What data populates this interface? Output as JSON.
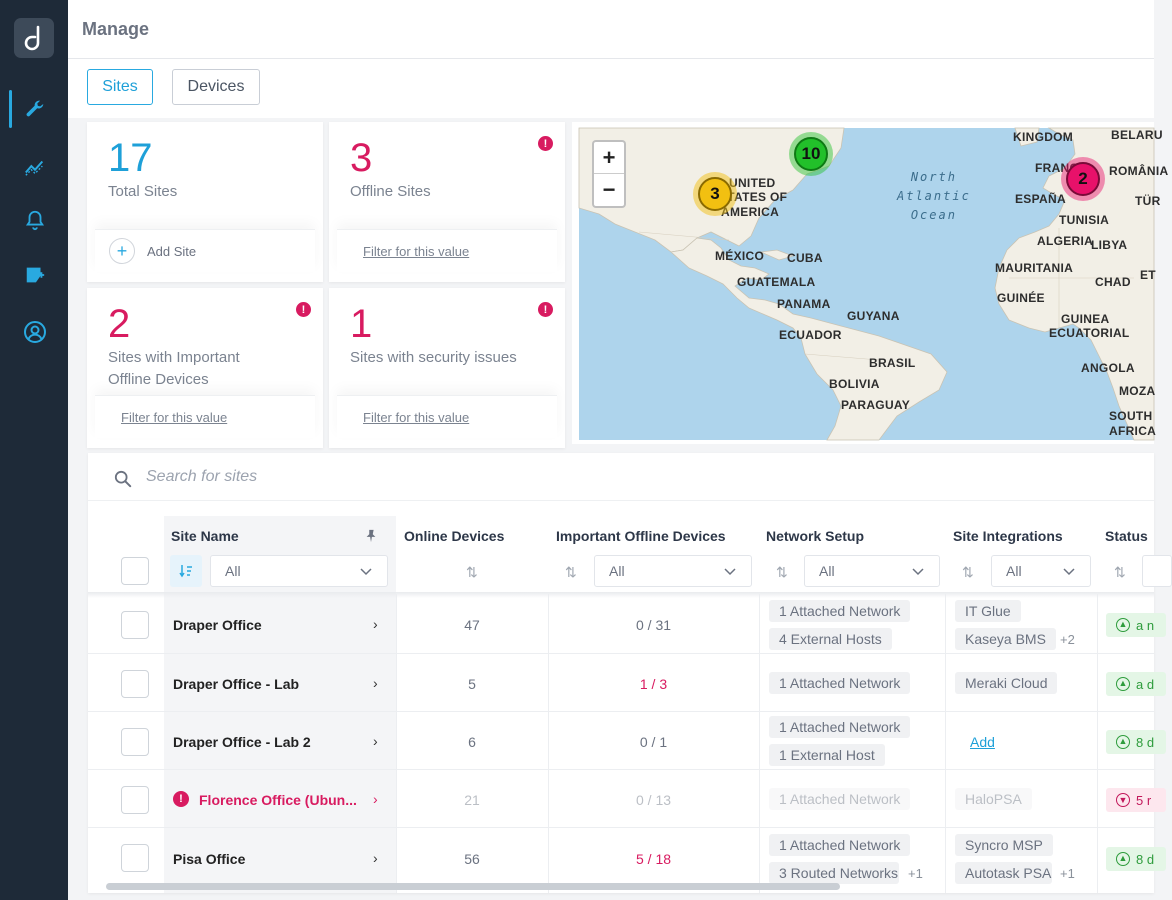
{
  "app": {
    "title": "Manage"
  },
  "tabs": [
    {
      "label": "Sites",
      "active": true
    },
    {
      "label": "Devices",
      "active": false
    }
  ],
  "sidebar": {
    "items": [
      "wrench-icon",
      "analytics-icon",
      "bell-icon",
      "ticket-icon",
      "user-circle-icon"
    ]
  },
  "stats": {
    "total_sites": {
      "value": "17",
      "label": "Total Sites",
      "action": "Add Site"
    },
    "offline_sites": {
      "value": "3",
      "label": "Offline Sites",
      "action": "Filter for this value"
    },
    "important_offline": {
      "value": "2",
      "label_line1": "Sites with Important",
      "label_line2": "Offline Devices",
      "action": "Filter for this value"
    },
    "security_issues": {
      "value": "1",
      "label": "Sites with security issues",
      "action": "Filter for this value"
    }
  },
  "map": {
    "zoom_in": "+",
    "zoom_out": "−",
    "ocean": [
      "North",
      "Atlantic",
      "Ocean"
    ],
    "labels": {
      "kingdom": "KINGDOM",
      "belarus": "BELARU",
      "france": "FRANCE",
      "romania": "ROMÂNIA",
      "espana": "ESPAÑA",
      "tur": "TÜR",
      "tunisia": "TUNISIA",
      "algeria": "ALGERIA",
      "libya": "LIBYA",
      "mauritania": "MAURITANIA",
      "chad": "CHAD",
      "et": "ET",
      "guinee": "GUINÉE",
      "guinea_eq1": "GUINEA",
      "guinea_eq2": "ECUATORIAL",
      "angola": "ANGOLA",
      "moza": "MOZA",
      "south_africa1": "SOUTH",
      "south_africa2": "AFRICA",
      "usa1": "UNITED",
      "usa2": "STATES OF",
      "usa3": "AMERICA",
      "mexico": "MÉXICO",
      "cuba": "CUBA",
      "guatemala": "GUATEMALA",
      "panama": "PANAMA",
      "guyana": "GUYANA",
      "ecuador": "ECUADOR",
      "brasil": "BRASIL",
      "bolivia": "BOLIVIA",
      "paraguay": "PARAGUAY"
    },
    "clusters": [
      {
        "count": "10",
        "color": "#22c02a"
      },
      {
        "count": "3",
        "color": "#f2c011"
      },
      {
        "count": "2",
        "color": "#e8116a"
      }
    ]
  },
  "search": {
    "placeholder": "Search for sites"
  },
  "columns": {
    "site_name": "Site Name",
    "online_devices": "Online Devices",
    "important_offline": "Important Offline Devices",
    "network_setup": "Network Setup",
    "site_integrations": "Site Integrations",
    "status": "Status"
  },
  "filters": {
    "all": "All"
  },
  "rows": [
    {
      "name": "Draper Office",
      "online": "47",
      "important": "0 / 31",
      "important_alert": false,
      "network": [
        "1 Attached Network",
        "4 External Hosts"
      ],
      "network_more": "",
      "integrations": [
        "IT Glue",
        "Kaseya BMS"
      ],
      "integrations_more": "+2",
      "integrations_add": "",
      "status": "a n",
      "status_kind": "ok",
      "alert": false,
      "dim": false
    },
    {
      "name": "Draper Office - Lab",
      "online": "5",
      "important": "1 / 3",
      "important_alert": true,
      "network": [
        "1 Attached Network"
      ],
      "network_more": "",
      "integrations": [
        "Meraki Cloud"
      ],
      "integrations_more": "",
      "integrations_add": "",
      "status": "a d",
      "status_kind": "ok",
      "alert": false,
      "dim": false
    },
    {
      "name": "Draper Office - Lab 2",
      "online": "6",
      "important": "0 / 1",
      "important_alert": false,
      "network": [
        "1 Attached Network",
        "1 External Host"
      ],
      "network_more": "",
      "integrations": [],
      "integrations_more": "",
      "integrations_add": "Add",
      "status": "8 d",
      "status_kind": "ok",
      "alert": false,
      "dim": false
    },
    {
      "name": "Florence Office (Ubun...",
      "online": "21",
      "important": "0 / 13",
      "important_alert": false,
      "network": [
        "1 Attached Network"
      ],
      "network_more": "",
      "integrations": [
        "HaloPSA"
      ],
      "integrations_more": "",
      "integrations_add": "",
      "status": "5 r",
      "status_kind": "bad",
      "alert": true,
      "dim": true
    },
    {
      "name": "Pisa Office",
      "online": "56",
      "important": "5 / 18",
      "important_alert": true,
      "network": [
        "1 Attached Network",
        "3 Routed Networks"
      ],
      "network_more": "+1",
      "integrations": [
        "Syncro MSP",
        "Autotask PSA"
      ],
      "integrations_more": "+1",
      "integrations_add": "",
      "status": "8 d",
      "status_kind": "ok",
      "alert": false,
      "dim": false
    }
  ]
}
